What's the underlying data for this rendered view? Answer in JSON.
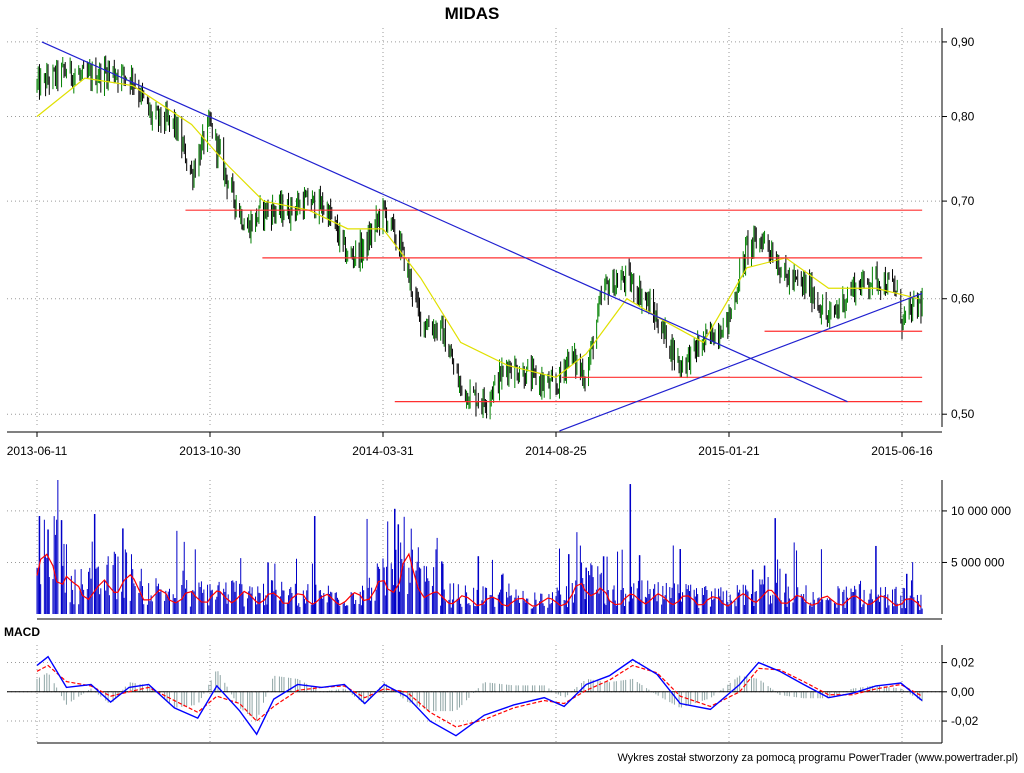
{
  "chart_title": "MIDAS",
  "footer_text": "Wykres został stworzony za pomocą programu PowerTrader (www.powertrader.pl)",
  "macd_label": "MACD",
  "colors": {
    "candle_up": "#008000",
    "candle_down": "#000000",
    "price_ma": "#e0e000",
    "trendline": "#2020d0",
    "horizontal_levels": "#ff3030",
    "volume_bars": "#0000c8",
    "volume_ma": "#ff0000",
    "macd_line": "#0000ff",
    "macd_signal": "#ff0000",
    "macd_histogram": "#8fa5a5"
  },
  "x_axis": {
    "tick_labels": [
      "2013-06-11",
      "2013-10-30",
      "2014-03-31",
      "2014-08-25",
      "2015-01-21",
      "2015-06-16"
    ]
  },
  "chart_data": [
    {
      "type": "candlestick",
      "title": "MIDAS",
      "ylim": [
        0.49,
        0.92
      ],
      "y_scale": "log",
      "y_ticks": [
        0.5,
        0.6,
        0.7,
        0.8,
        0.9
      ],
      "y_tick_labels": [
        "0,50",
        "0,60",
        "0,70",
        "0,80",
        "0,90"
      ],
      "grid": true,
      "close_series": {
        "dates": [
          "2013-06-11",
          "2013-07-05",
          "2013-07-20",
          "2013-08-10",
          "2013-08-28",
          "2013-09-12",
          "2013-10-01",
          "2013-10-15",
          "2013-10-30",
          "2013-11-15",
          "2013-12-01",
          "2013-12-16",
          "2014-01-05",
          "2014-01-25",
          "2014-02-10",
          "2014-02-28",
          "2014-03-15",
          "2014-03-31",
          "2014-04-15",
          "2014-05-02",
          "2014-05-20",
          "2014-06-05",
          "2014-06-25",
          "2014-07-15",
          "2014-08-05",
          "2014-08-25",
          "2014-09-05",
          "2014-09-20",
          "2014-10-05",
          "2014-10-25",
          "2014-11-10",
          "2014-11-25",
          "2014-12-10",
          "2014-12-30",
          "2015-01-21",
          "2015-02-05",
          "2015-02-20",
          "2015-03-10",
          "2015-03-30",
          "2015-04-15",
          "2015-05-05",
          "2015-05-25",
          "2015-06-10",
          "2015-06-16",
          "2015-06-30"
        ],
        "values": [
          0.84,
          0.86,
          0.85,
          0.86,
          0.85,
          0.8,
          0.79,
          0.73,
          0.79,
          0.72,
          0.67,
          0.69,
          0.69,
          0.7,
          0.69,
          0.64,
          0.65,
          0.69,
          0.65,
          0.58,
          0.57,
          0.52,
          0.51,
          0.54,
          0.53,
          0.52,
          0.55,
          0.53,
          0.61,
          0.62,
          0.6,
          0.57,
          0.54,
          0.56,
          0.58,
          0.65,
          0.66,
          0.62,
          0.61,
          0.58,
          0.61,
          0.62,
          0.61,
          0.58,
          0.595
        ]
      },
      "moving_average": {
        "dates": [
          "2013-06-11",
          "2013-07-20",
          "2013-08-28",
          "2013-10-15",
          "2013-11-15",
          "2013-12-16",
          "2014-01-25",
          "2014-02-28",
          "2014-03-31",
          "2014-05-02",
          "2014-06-05",
          "2014-07-15",
          "2014-08-25",
          "2014-09-20",
          "2014-10-25",
          "2014-11-25",
          "2014-12-30",
          "2015-02-05",
          "2015-03-10",
          "2015-04-15",
          "2015-05-25",
          "2015-06-30"
        ],
        "values": [
          0.8,
          0.85,
          0.84,
          0.79,
          0.74,
          0.7,
          0.69,
          0.67,
          0.67,
          0.62,
          0.56,
          0.54,
          0.53,
          0.55,
          0.6,
          0.58,
          0.56,
          0.63,
          0.64,
          0.61,
          0.61,
          0.6
        ]
      },
      "trendlines": [
        {
          "from": [
            "2013-06-15",
            0.9
          ],
          "to": [
            "2015-05-01",
            0.51
          ]
        },
        {
          "from": [
            "2014-08-28",
            0.487
          ],
          "to": [
            "2015-07-03",
            0.605
          ]
        }
      ],
      "horizontal_levels": [
        {
          "y": 0.69,
          "from": "2013-10-10",
          "to": "2015-07-03"
        },
        {
          "y": 0.64,
          "from": "2013-12-15",
          "to": "2015-07-03"
        },
        {
          "y": 0.57,
          "from": "2015-02-20",
          "to": "2015-07-03"
        },
        {
          "y": 0.53,
          "from": "2014-08-30",
          "to": "2015-07-03"
        },
        {
          "y": 0.51,
          "from": "2014-04-10",
          "to": "2015-07-03"
        }
      ]
    },
    {
      "type": "bar",
      "title": "",
      "ylim": [
        0,
        13000000
      ],
      "y_ticks": [
        5000000,
        10000000
      ],
      "y_tick_labels": [
        "5 000 000",
        "10 000 000"
      ],
      "grid": true,
      "peaks": {
        "dates": [
          "2013-06-13",
          "2013-06-20",
          "2013-07-01",
          "2013-07-28",
          "2013-08-20",
          "2013-12-20",
          "2014-01-30",
          "2014-04-10",
          "2014-04-13",
          "2014-05-20",
          "2014-06-20",
          "2014-07-10",
          "2014-09-05",
          "2014-09-20",
          "2014-10-05",
          "2014-10-28",
          "2014-11-05",
          "2014-12-10",
          "2015-02-10",
          "2015-02-20",
          "2015-03-01",
          "2015-03-10",
          "2015-05-25",
          "2015-06-20"
        ],
        "values": [
          9500000,
          8200000,
          9100000,
          9700000,
          8300000,
          5000000,
          9500000,
          10200000,
          8700000,
          5100000,
          5600000,
          3800000,
          5800000,
          4500000,
          5600000,
          12600000,
          5700000,
          6300000,
          4300000,
          4700000,
          9300000,
          3900000,
          6600000,
          3900000
        ]
      },
      "moving_average": {
        "dates": [
          "2013-06-11",
          "2013-06-25",
          "2013-07-10",
          "2013-07-30",
          "2013-08-20",
          "2013-09-10",
          "2013-10-10",
          "2013-11-10",
          "2013-12-20",
          "2014-01-30",
          "2014-03-01",
          "2014-04-05",
          "2014-04-20",
          "2014-05-10",
          "2014-06-10",
          "2014-07-10",
          "2014-08-10",
          "2014-09-05",
          "2014-09-20",
          "2014-10-10",
          "2014-11-05",
          "2014-12-10",
          "2015-01-21",
          "2015-02-20",
          "2015-03-15",
          "2015-04-15",
          "2015-05-20",
          "2015-06-20",
          "2015-07-03"
        ],
        "values": [
          4400000,
          6000000,
          2700000,
          2500000,
          3900000,
          2100000,
          1900000,
          2000000,
          1800000,
          1700000,
          1600000,
          3200000,
          5400000,
          2000000,
          1500000,
          1400000,
          1300000,
          1500000,
          3600000,
          1500000,
          1800000,
          1600000,
          1400000,
          2200000,
          1600000,
          1500000,
          1600000,
          1400000,
          1000000
        ]
      }
    },
    {
      "type": "line",
      "title": "MACD",
      "ylim": [
        -0.035,
        0.032
      ],
      "y_ticks": [
        -0.02,
        0.0,
        0.02
      ],
      "y_tick_labels": [
        "-0,02",
        "0,00",
        "0,02"
      ],
      "grid": true,
      "x": [
        "2013-06-11",
        "2013-06-20",
        "2013-07-05",
        "2013-07-25",
        "2013-08-10",
        "2013-08-25",
        "2013-09-10",
        "2013-10-01",
        "2013-10-20",
        "2013-11-05",
        "2013-11-25",
        "2013-12-10",
        "2013-12-25",
        "2014-01-15",
        "2014-02-05",
        "2014-02-25",
        "2014-03-15",
        "2014-04-01",
        "2014-04-20",
        "2014-05-10",
        "2014-06-01",
        "2014-06-25",
        "2014-07-20",
        "2014-08-15",
        "2014-09-01",
        "2014-09-20",
        "2014-10-10",
        "2014-10-30",
        "2014-11-20",
        "2014-12-10",
        "2015-01-05",
        "2015-01-30",
        "2015-02-15",
        "2015-03-05",
        "2015-03-25",
        "2015-04-15",
        "2015-05-05",
        "2015-05-25",
        "2015-06-15",
        "2015-07-03"
      ],
      "series": [
        {
          "values": [
            0.018,
            0.024,
            0.003,
            0.005,
            -0.007,
            0.003,
            0.005,
            -0.011,
            -0.018,
            0.004,
            -0.013,
            -0.029,
            -0.005,
            0.005,
            0.003,
            0.005,
            -0.008,
            0.005,
            -0.003,
            -0.02,
            -0.03,
            -0.016,
            -0.009,
            -0.004,
            -0.01,
            0.005,
            0.011,
            0.022,
            0.012,
            -0.008,
            -0.012,
            0.005,
            0.02,
            0.014,
            0.005,
            -0.004,
            -0.001,
            0.004,
            0.006,
            -0.006
          ]
        },
        {
          "values": [
            0.014,
            0.018,
            0.007,
            0.004,
            -0.003,
            0.0,
            0.003,
            -0.006,
            -0.014,
            -0.003,
            -0.008,
            -0.02,
            -0.01,
            0.001,
            0.003,
            0.004,
            -0.004,
            0.002,
            0.0,
            -0.014,
            -0.024,
            -0.019,
            -0.011,
            -0.006,
            -0.008,
            0.001,
            0.008,
            0.018,
            0.013,
            -0.003,
            -0.01,
            0.0,
            0.016,
            0.015,
            0.007,
            -0.002,
            -0.002,
            0.002,
            0.005,
            -0.003
          ]
        }
      ]
    }
  ]
}
